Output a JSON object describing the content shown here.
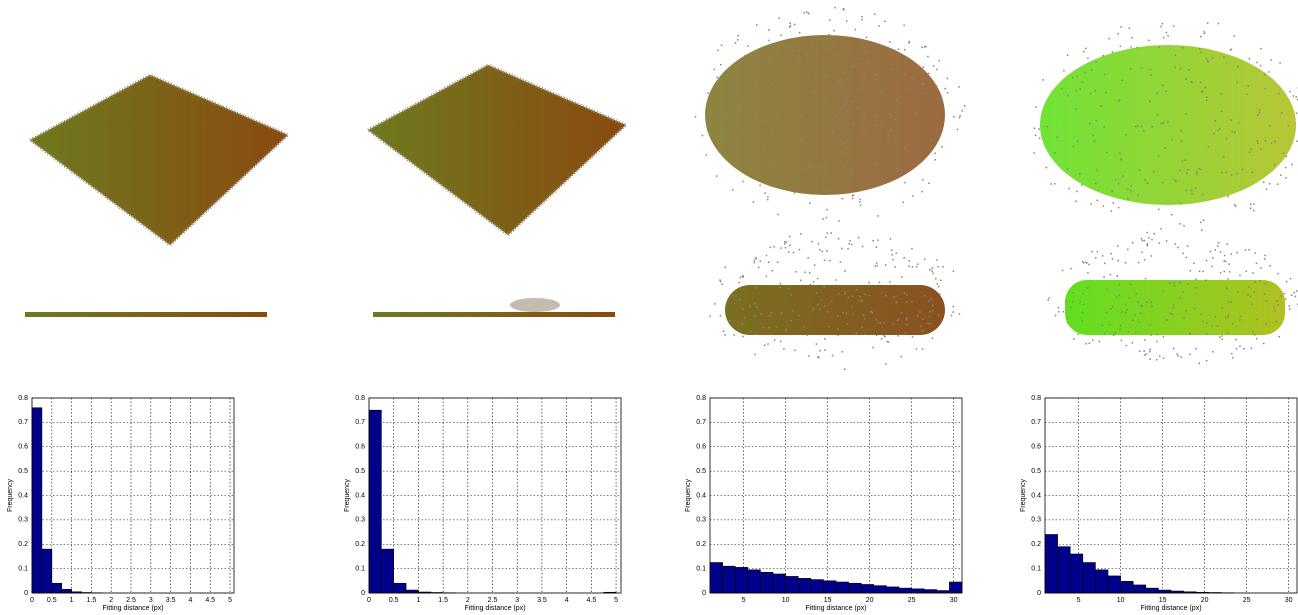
{
  "chart_data": [
    {
      "type": "histogram",
      "xlabel": "Fitting distance (px)",
      "ylabel": "Frequency",
      "color": "#00008b",
      "grid": true,
      "bins": [
        0,
        0.25,
        0.5,
        0.75,
        1,
        1.25,
        1.5,
        1.75,
        2,
        2.25,
        2.5,
        2.75,
        3,
        3.25,
        3.5,
        3.75,
        4,
        4.25,
        4.5,
        4.75,
        5
      ],
      "counts": [
        0.76,
        0.18,
        0.04,
        0.015,
        0.005,
        0.002,
        0.001,
        0,
        0,
        0,
        0,
        0,
        0,
        0,
        0,
        0,
        0,
        0,
        0,
        0
      ],
      "xlim": [
        0,
        5.1
      ],
      "ylim": [
        0,
        0.8
      ],
      "xticks": [
        0,
        0.5,
        1,
        1.5,
        2,
        2.5,
        3,
        3.5,
        4,
        4.5,
        5
      ],
      "yticks": [
        0,
        0.1,
        0.2,
        0.3,
        0.4,
        0.5,
        0.6,
        0.7,
        0.8
      ]
    },
    {
      "type": "histogram",
      "xlabel": "Fitting distance (px)",
      "ylabel": "Frequency",
      "color": "#00008b",
      "grid": true,
      "bins": [
        0,
        0.25,
        0.5,
        0.75,
        1,
        1.25,
        1.5,
        1.75,
        2,
        2.25,
        2.5,
        2.75,
        3,
        3.25,
        3.5,
        3.75,
        4,
        4.25,
        4.5,
        4.75,
        5
      ],
      "counts": [
        0.75,
        0.18,
        0.04,
        0.012,
        0.004,
        0.002,
        0.001,
        0,
        0,
        0,
        0,
        0,
        0,
        0,
        0,
        0,
        0,
        0,
        0,
        0.003
      ],
      "xlim": [
        0,
        5.1
      ],
      "ylim": [
        0,
        0.8
      ],
      "xticks": [
        0,
        0.5,
        1,
        1.5,
        2,
        2.5,
        3,
        3.5,
        4,
        4.5,
        5
      ],
      "yticks": [
        0,
        0.1,
        0.2,
        0.3,
        0.4,
        0.5,
        0.6,
        0.7,
        0.8
      ]
    },
    {
      "type": "histogram",
      "xlabel": "Fitting distance (px)",
      "ylabel": "Frequency",
      "color": "#00008b",
      "grid": true,
      "bins": [
        1,
        2.5,
        4,
        5.5,
        7,
        8.5,
        10,
        11.5,
        13,
        14.5,
        16,
        17.5,
        19,
        20.5,
        22,
        23.5,
        25,
        26.5,
        28,
        29.5,
        31
      ],
      "counts": [
        0.125,
        0.11,
        0.105,
        0.095,
        0.085,
        0.078,
        0.068,
        0.06,
        0.055,
        0.05,
        0.045,
        0.04,
        0.035,
        0.03,
        0.025,
        0.02,
        0.017,
        0.014,
        0.01,
        0.045
      ],
      "xlim": [
        1,
        31
      ],
      "ylim": [
        0,
        0.8
      ],
      "xticks": [
        5,
        10,
        15,
        20,
        25,
        30
      ],
      "yticks": [
        0,
        0.1,
        0.2,
        0.3,
        0.4,
        0.5,
        0.6,
        0.7,
        0.8
      ]
    },
    {
      "type": "histogram",
      "xlabel": "Fitting distance (px)",
      "ylabel": "Frequency",
      "color": "#00008b",
      "grid": true,
      "bins": [
        1,
        2.5,
        4,
        5.5,
        7,
        8.5,
        10,
        11.5,
        13,
        14.5,
        16,
        17.5,
        19,
        20.5,
        22,
        23.5,
        25,
        26.5,
        28,
        29.5,
        31
      ],
      "counts": [
        0.24,
        0.19,
        0.16,
        0.125,
        0.095,
        0.07,
        0.048,
        0.033,
        0.02,
        0.012,
        0.008,
        0.005,
        0.003,
        0.002,
        0.001,
        0,
        0,
        0,
        0,
        0
      ],
      "xlim": [
        1,
        31
      ],
      "ylim": [
        0,
        0.8
      ],
      "xticks": [
        5,
        10,
        15,
        20,
        25,
        30
      ],
      "yticks": [
        0,
        0.1,
        0.2,
        0.3,
        0.4,
        0.5,
        0.6,
        0.7,
        0.8
      ]
    }
  ]
}
